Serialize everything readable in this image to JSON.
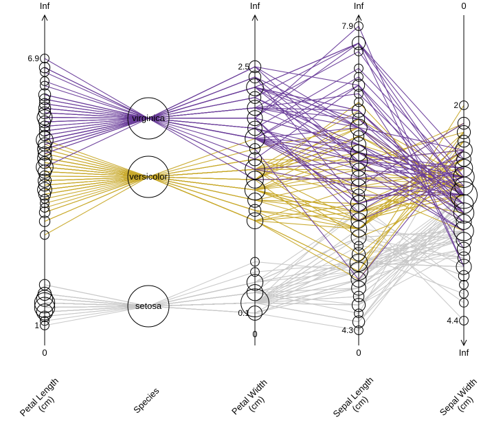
{
  "chart_data": {
    "type": "parallel_coordinates_hammock",
    "title": "",
    "axes": [
      {
        "name": "Petal Length (cm)",
        "label_lines": [
          "Petal Length",
          "(cm)"
        ],
        "top_label": "Inf",
        "bottom_label": "0",
        "value_labels": [
          {
            "text": "6.9",
            "value": 6.9
          },
          {
            "text": "1",
            "value": 1.0
          }
        ],
        "range": [
          1.0,
          6.9
        ]
      },
      {
        "name": "Species",
        "label_lines": [
          "Species"
        ],
        "categories": [
          "virginica",
          "versicolor",
          "setosa"
        ],
        "counts": [
          50,
          50,
          50
        ]
      },
      {
        "name": "Petal Width (cm)",
        "label_lines": [
          "Petal Width",
          "(cm)"
        ],
        "top_label": "Inf",
        "bottom_label": "0",
        "value_labels": [
          {
            "text": "2.5",
            "value": 2.5
          },
          {
            "text": "0.1",
            "value": 0.1
          }
        ],
        "range": [
          0.1,
          2.5
        ]
      },
      {
        "name": "Sepal Length (cm)",
        "label_lines": [
          "Sepal Length",
          "(cm)"
        ],
        "top_label": "Inf",
        "bottom_label": "0",
        "value_labels": [
          {
            "text": "7.9",
            "value": 7.9
          },
          {
            "text": "4.3",
            "value": 4.3
          }
        ],
        "range": [
          4.3,
          7.9
        ]
      },
      {
        "name": "Sepal Width (cm)",
        "label_lines": [
          "Sepal Width",
          "(cm)"
        ],
        "top_label": "0",
        "bottom_label": "Inf",
        "value_labels": [
          {
            "text": "2",
            "value": 2.0
          },
          {
            "text": "4.4",
            "value": 4.4
          }
        ],
        "range": [
          2.0,
          4.4
        ],
        "inverted": true
      }
    ],
    "colors": {
      "virginica": "#6a3d9a",
      "versicolor": "#c8a92a",
      "setosa": "#c8c8c8"
    },
    "records": {
      "setosa": [
        [
          5.1,
          3.5,
          1.4,
          0.2
        ],
        [
          4.9,
          3.0,
          1.4,
          0.2
        ],
        [
          4.7,
          3.2,
          1.3,
          0.2
        ],
        [
          4.6,
          3.1,
          1.5,
          0.2
        ],
        [
          5.0,
          3.6,
          1.4,
          0.2
        ],
        [
          5.4,
          3.9,
          1.7,
          0.4
        ],
        [
          4.6,
          3.4,
          1.4,
          0.3
        ],
        [
          5.0,
          3.4,
          1.5,
          0.2
        ],
        [
          4.4,
          2.9,
          1.4,
          0.2
        ],
        [
          4.9,
          3.1,
          1.5,
          0.1
        ],
        [
          5.4,
          3.7,
          1.5,
          0.2
        ],
        [
          4.8,
          3.4,
          1.6,
          0.2
        ],
        [
          4.8,
          3.0,
          1.4,
          0.1
        ],
        [
          4.3,
          3.0,
          1.1,
          0.1
        ],
        [
          5.8,
          4.0,
          1.2,
          0.2
        ],
        [
          5.7,
          4.4,
          1.5,
          0.4
        ],
        [
          5.4,
          3.9,
          1.3,
          0.4
        ],
        [
          5.1,
          3.5,
          1.4,
          0.3
        ],
        [
          5.7,
          3.8,
          1.7,
          0.3
        ],
        [
          5.1,
          3.8,
          1.5,
          0.3
        ],
        [
          5.4,
          3.4,
          1.7,
          0.2
        ],
        [
          5.1,
          3.7,
          1.5,
          0.4
        ],
        [
          4.6,
          3.6,
          1.0,
          0.2
        ],
        [
          5.1,
          3.3,
          1.7,
          0.5
        ],
        [
          4.8,
          3.4,
          1.9,
          0.2
        ],
        [
          5.0,
          3.0,
          1.6,
          0.2
        ],
        [
          5.0,
          3.4,
          1.6,
          0.4
        ],
        [
          5.2,
          3.5,
          1.5,
          0.2
        ],
        [
          5.2,
          3.4,
          1.4,
          0.2
        ],
        [
          4.7,
          3.2,
          1.6,
          0.2
        ],
        [
          4.8,
          3.1,
          1.6,
          0.2
        ],
        [
          5.4,
          3.4,
          1.5,
          0.4
        ],
        [
          5.2,
          4.1,
          1.5,
          0.1
        ],
        [
          5.5,
          4.2,
          1.4,
          0.2
        ],
        [
          4.9,
          3.1,
          1.5,
          0.2
        ],
        [
          5.0,
          3.2,
          1.2,
          0.2
        ],
        [
          5.5,
          3.5,
          1.3,
          0.2
        ],
        [
          4.9,
          3.6,
          1.4,
          0.1
        ],
        [
          4.4,
          3.0,
          1.3,
          0.2
        ],
        [
          5.1,
          3.4,
          1.5,
          0.2
        ],
        [
          5.0,
          3.5,
          1.3,
          0.3
        ],
        [
          4.5,
          2.3,
          1.3,
          0.3
        ],
        [
          4.4,
          3.2,
          1.3,
          0.2
        ],
        [
          5.0,
          3.5,
          1.6,
          0.6
        ],
        [
          5.1,
          3.8,
          1.9,
          0.4
        ],
        [
          4.8,
          3.0,
          1.4,
          0.3
        ],
        [
          5.1,
          3.8,
          1.6,
          0.2
        ],
        [
          4.6,
          3.2,
          1.4,
          0.2
        ],
        [
          5.3,
          3.7,
          1.5,
          0.2
        ],
        [
          5.0,
          3.3,
          1.4,
          0.2
        ]
      ],
      "versicolor": [
        [
          7.0,
          3.2,
          4.7,
          1.4
        ],
        [
          6.4,
          3.2,
          4.5,
          1.5
        ],
        [
          6.9,
          3.1,
          4.9,
          1.5
        ],
        [
          5.5,
          2.3,
          4.0,
          1.3
        ],
        [
          6.5,
          2.8,
          4.6,
          1.5
        ],
        [
          5.7,
          2.8,
          4.5,
          1.3
        ],
        [
          6.3,
          3.3,
          4.7,
          1.6
        ],
        [
          4.9,
          2.4,
          3.3,
          1.0
        ],
        [
          6.6,
          2.9,
          4.6,
          1.3
        ],
        [
          5.2,
          2.7,
          3.9,
          1.4
        ],
        [
          5.0,
          2.0,
          3.5,
          1.0
        ],
        [
          5.9,
          3.0,
          4.2,
          1.5
        ],
        [
          6.0,
          2.2,
          4.0,
          1.0
        ],
        [
          6.1,
          2.9,
          4.7,
          1.4
        ],
        [
          5.6,
          2.9,
          3.6,
          1.3
        ],
        [
          6.7,
          3.1,
          4.4,
          1.4
        ],
        [
          5.6,
          3.0,
          4.5,
          1.5
        ],
        [
          5.8,
          2.7,
          4.1,
          1.0
        ],
        [
          6.2,
          2.2,
          4.5,
          1.5
        ],
        [
          5.6,
          2.5,
          3.9,
          1.1
        ],
        [
          5.9,
          3.2,
          4.8,
          1.8
        ],
        [
          6.1,
          2.8,
          4.0,
          1.3
        ],
        [
          6.3,
          2.5,
          4.9,
          1.5
        ],
        [
          6.1,
          2.8,
          4.7,
          1.2
        ],
        [
          6.4,
          2.9,
          4.3,
          1.3
        ],
        [
          6.6,
          3.0,
          4.4,
          1.4
        ],
        [
          6.8,
          2.8,
          4.8,
          1.4
        ],
        [
          6.7,
          3.0,
          5.0,
          1.7
        ],
        [
          6.0,
          2.9,
          4.5,
          1.5
        ],
        [
          5.7,
          2.6,
          3.5,
          1.0
        ],
        [
          5.5,
          2.4,
          3.8,
          1.1
        ],
        [
          5.5,
          2.4,
          3.7,
          1.0
        ],
        [
          5.8,
          2.7,
          3.9,
          1.2
        ],
        [
          6.0,
          2.7,
          5.1,
          1.6
        ],
        [
          5.4,
          3.0,
          4.5,
          1.5
        ],
        [
          6.0,
          3.4,
          4.5,
          1.6
        ],
        [
          6.7,
          3.1,
          4.7,
          1.5
        ],
        [
          6.3,
          2.3,
          4.4,
          1.3
        ],
        [
          5.6,
          3.0,
          4.1,
          1.3
        ],
        [
          5.5,
          2.5,
          4.0,
          1.3
        ],
        [
          5.5,
          2.6,
          4.4,
          1.2
        ],
        [
          6.1,
          3.0,
          4.6,
          1.4
        ],
        [
          5.8,
          2.6,
          4.0,
          1.2
        ],
        [
          5.0,
          2.3,
          3.3,
          1.0
        ],
        [
          5.6,
          2.7,
          4.2,
          1.3
        ],
        [
          5.7,
          3.0,
          4.2,
          1.2
        ],
        [
          5.7,
          2.9,
          4.2,
          1.3
        ],
        [
          6.2,
          2.9,
          4.3,
          1.3
        ],
        [
          5.1,
          2.5,
          3.0,
          1.1
        ],
        [
          5.7,
          2.8,
          4.1,
          1.3
        ]
      ],
      "virginica": [
        [
          6.3,
          3.3,
          6.0,
          2.5
        ],
        [
          5.8,
          2.7,
          5.1,
          1.9
        ],
        [
          7.1,
          3.0,
          5.9,
          2.1
        ],
        [
          6.3,
          2.9,
          5.6,
          1.8
        ],
        [
          6.5,
          3.0,
          5.8,
          2.2
        ],
        [
          7.6,
          3.0,
          6.6,
          2.1
        ],
        [
          4.9,
          2.5,
          4.5,
          1.7
        ],
        [
          7.3,
          2.9,
          6.3,
          1.8
        ],
        [
          6.7,
          2.5,
          5.8,
          1.8
        ],
        [
          7.2,
          3.6,
          6.1,
          2.5
        ],
        [
          6.5,
          3.2,
          5.1,
          2.0
        ],
        [
          6.4,
          2.7,
          5.3,
          1.9
        ],
        [
          6.8,
          3.0,
          5.5,
          2.1
        ],
        [
          5.7,
          2.5,
          5.0,
          2.0
        ],
        [
          5.8,
          2.8,
          5.1,
          2.4
        ],
        [
          6.4,
          3.2,
          5.3,
          2.3
        ],
        [
          6.5,
          3.0,
          5.5,
          1.8
        ],
        [
          7.7,
          3.8,
          6.7,
          2.2
        ],
        [
          7.7,
          2.6,
          6.9,
          2.3
        ],
        [
          6.0,
          2.2,
          5.0,
          1.5
        ],
        [
          6.9,
          3.2,
          5.7,
          2.3
        ],
        [
          5.6,
          2.8,
          4.9,
          2.0
        ],
        [
          7.7,
          2.8,
          6.7,
          2.0
        ],
        [
          6.3,
          2.7,
          4.9,
          1.8
        ],
        [
          6.7,
          3.3,
          5.7,
          2.1
        ],
        [
          7.2,
          3.2,
          6.0,
          1.8
        ],
        [
          6.2,
          2.8,
          4.8,
          1.8
        ],
        [
          6.1,
          3.0,
          4.9,
          1.8
        ],
        [
          6.4,
          2.8,
          5.6,
          2.1
        ],
        [
          7.2,
          3.0,
          5.8,
          1.6
        ],
        [
          7.4,
          2.8,
          6.1,
          1.9
        ],
        [
          7.9,
          3.8,
          6.4,
          2.0
        ],
        [
          6.4,
          2.8,
          5.6,
          2.2
        ],
        [
          6.3,
          2.8,
          5.1,
          1.5
        ],
        [
          6.1,
          2.6,
          5.6,
          1.4
        ],
        [
          7.7,
          3.0,
          6.1,
          2.3
        ],
        [
          6.3,
          3.4,
          5.6,
          2.4
        ],
        [
          6.4,
          3.1,
          5.5,
          1.8
        ],
        [
          6.0,
          3.0,
          4.8,
          1.8
        ],
        [
          6.9,
          3.1,
          5.4,
          2.1
        ],
        [
          6.7,
          3.1,
          5.6,
          2.4
        ],
        [
          6.9,
          3.1,
          5.1,
          2.3
        ],
        [
          5.8,
          2.7,
          5.1,
          1.9
        ],
        [
          6.8,
          3.2,
          5.9,
          2.3
        ],
        [
          6.7,
          3.3,
          5.7,
          2.5
        ],
        [
          6.7,
          3.0,
          5.2,
          2.3
        ],
        [
          6.3,
          2.5,
          5.0,
          1.9
        ],
        [
          6.5,
          3.0,
          5.2,
          2.0
        ],
        [
          6.2,
          3.4,
          5.4,
          2.3
        ],
        [
          5.9,
          3.0,
          5.1,
          1.8
        ]
      ]
    }
  }
}
